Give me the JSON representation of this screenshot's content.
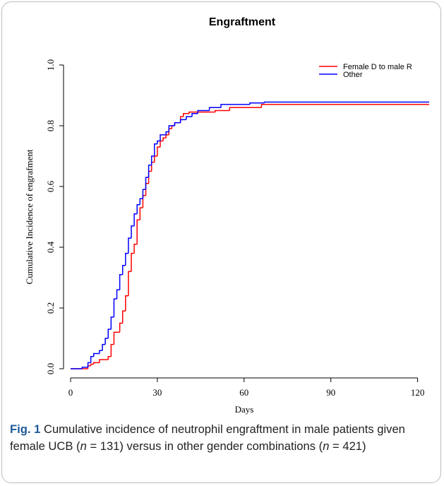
{
  "chart_data": {
    "type": "line",
    "step": true,
    "title": "Engraftment",
    "x_label": "Days",
    "y_label": "Cumulative Incidence of engrafment",
    "xlim": [
      0,
      124
    ],
    "ylim": [
      0,
      1
    ],
    "xticks": [
      0,
      30,
      60,
      90,
      120
    ],
    "yticks": [
      {
        "value": 0,
        "label": "0.0"
      },
      {
        "value": 0.2,
        "label": "0.2"
      },
      {
        "value": 0.4,
        "label": "0.4"
      },
      {
        "value": 0.6,
        "label": "0.6"
      },
      {
        "value": 0.8,
        "label": "0.8"
      },
      {
        "value": 1,
        "label": "1.0"
      }
    ],
    "legend": "top-right",
    "series": [
      {
        "name": "Female D to male R",
        "color": "#ff0000",
        "x": [
          0,
          6,
          7,
          8,
          10,
          13,
          14,
          15,
          17,
          18,
          19,
          20,
          21,
          22,
          23,
          24,
          25,
          26,
          27,
          28,
          29,
          30,
          31,
          32,
          33,
          34,
          35,
          36,
          38,
          39,
          41,
          50,
          55,
          66,
          124
        ],
        "values": [
          0,
          0.01,
          0.015,
          0.02,
          0.03,
          0.04,
          0.08,
          0.12,
          0.15,
          0.19,
          0.24,
          0.32,
          0.38,
          0.41,
          0.49,
          0.53,
          0.57,
          0.61,
          0.65,
          0.68,
          0.7,
          0.73,
          0.75,
          0.76,
          0.77,
          0.79,
          0.8,
          0.81,
          0.83,
          0.84,
          0.845,
          0.85,
          0.86,
          0.87,
          0.87
        ]
      },
      {
        "name": "Other",
        "color": "#0000ff",
        "x": [
          0,
          4,
          6,
          7,
          8,
          10,
          11,
          12,
          13,
          14,
          15,
          16,
          17,
          18,
          19,
          20,
          21,
          22,
          23,
          24,
          25,
          26,
          27,
          28,
          29,
          30,
          31,
          33,
          34,
          36,
          38,
          40,
          42,
          44,
          48,
          52,
          62,
          67,
          124
        ],
        "values": [
          0,
          0.005,
          0.02,
          0.04,
          0.05,
          0.06,
          0.08,
          0.1,
          0.13,
          0.17,
          0.23,
          0.26,
          0.31,
          0.34,
          0.38,
          0.43,
          0.47,
          0.51,
          0.54,
          0.56,
          0.59,
          0.63,
          0.67,
          0.7,
          0.74,
          0.75,
          0.77,
          0.78,
          0.8,
          0.81,
          0.82,
          0.83,
          0.84,
          0.85,
          0.86,
          0.87,
          0.875,
          0.878,
          0.878
        ]
      }
    ]
  },
  "caption": {
    "label": "Fig. 1",
    "parts": [
      "Cumulative incidence of neutrophil engraftment in male patients given female UCB (",
      "n",
      " = 131) versus in other gender combinations (",
      "n",
      " = 421)"
    ]
  }
}
